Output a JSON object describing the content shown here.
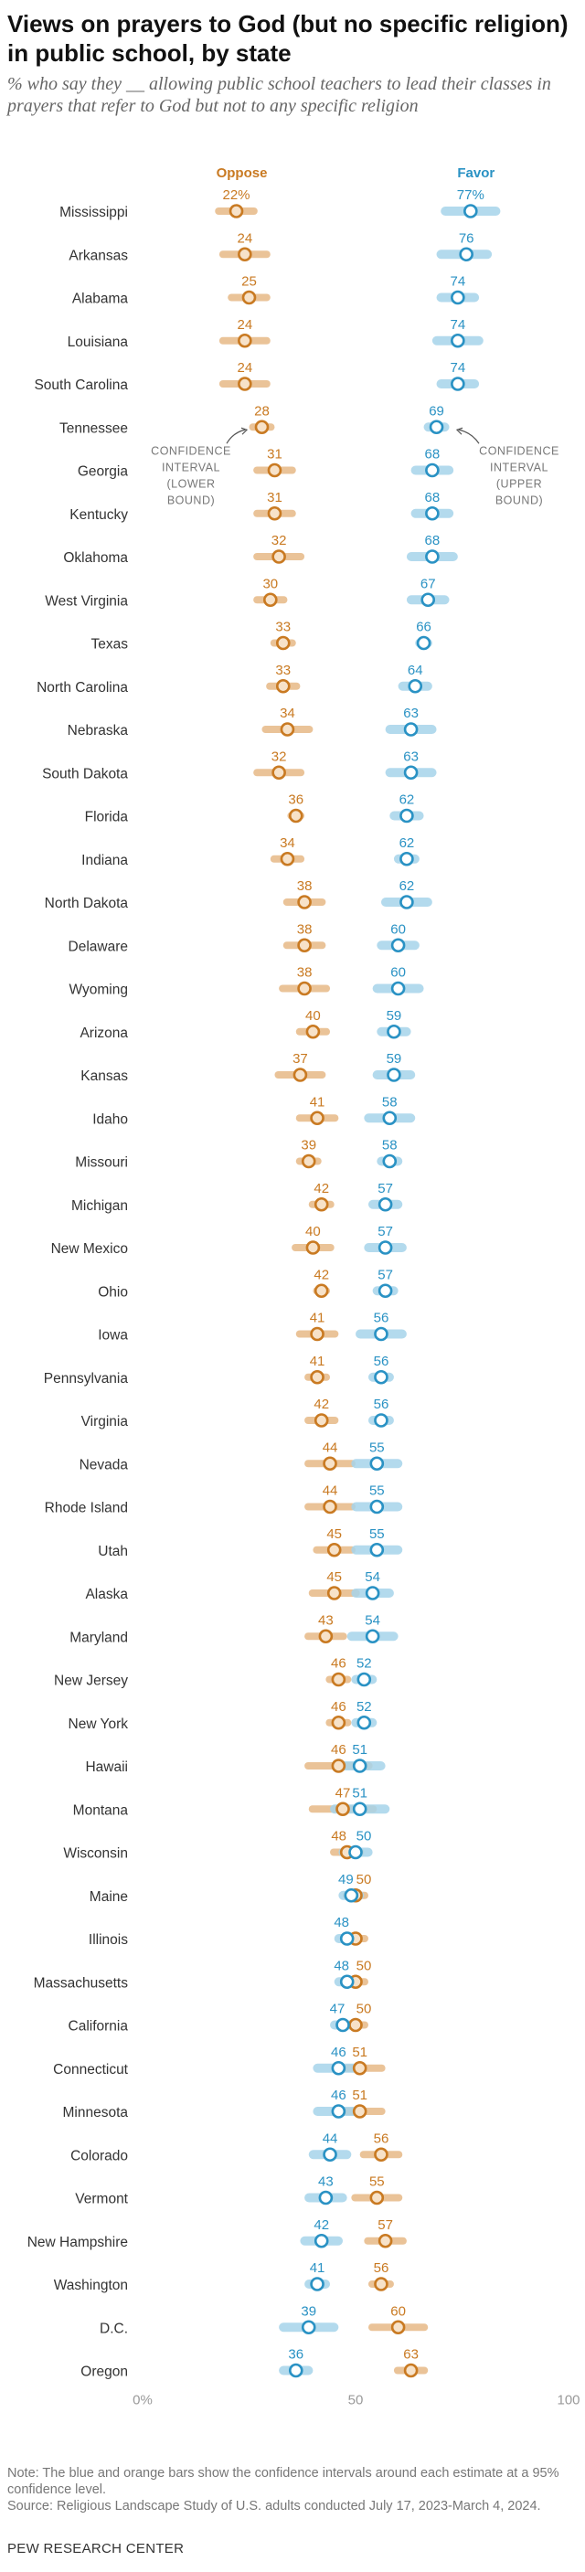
{
  "title": "Views on prayers to God (but no specific religion) in public school, by state",
  "subtitle": "% who say they __ allowing public school teachers to lead their classes in prayers that refer to God but not to any specific religion",
  "colors": {
    "oppose": "#c97a22",
    "oppose_bar": "#e6b886",
    "favor": "#2a92c4",
    "favor_bar": "#a6d3ea",
    "overlap": "#a9a392",
    "axis_text": "#9a9a9a",
    "label_text": "#333333"
  },
  "annotations": {
    "left": [
      "CONFIDENCE",
      "INTERVAL",
      "(LOWER",
      "BOUND)"
    ],
    "right": [
      "CONFIDENCE",
      "INTERVAL",
      "(UPPER",
      "BOUND)"
    ]
  },
  "chart_data": {
    "type": "dot-plot",
    "xlim": [
      0,
      100
    ],
    "xticks": [
      "0%",
      "50",
      "100"
    ],
    "xtick_values": [
      0,
      50,
      100
    ],
    "legend": [
      "Oppose",
      "Favor"
    ],
    "series": [
      {
        "name": "Oppose",
        "values": [
          22,
          24,
          25,
          24,
          24,
          28,
          31,
          31,
          32,
          30,
          33,
          33,
          34,
          32,
          36,
          34,
          38,
          38,
          38,
          40,
          37,
          41,
          39,
          42,
          40,
          42,
          41,
          41,
          42,
          44,
          44,
          45,
          45,
          43,
          46,
          46,
          46,
          47,
          48,
          50,
          50,
          50,
          50,
          51,
          51,
          56,
          55,
          57,
          56,
          60,
          63
        ],
        "labels": [
          "22%",
          "24",
          "25",
          "24",
          "24",
          "28",
          "31",
          "31",
          "32",
          "30",
          "33",
          "33",
          "34",
          "32",
          "36",
          "34",
          "38",
          "38",
          "38",
          "40",
          "37",
          "41",
          "39",
          "42",
          "40",
          "42",
          "41",
          "41",
          "42",
          "44",
          "44",
          "45",
          "45",
          "43",
          "46",
          "46",
          "46",
          "47",
          "48",
          "50",
          "",
          "50",
          "50",
          "51",
          "51",
          "56",
          "55",
          "57",
          "56",
          "60",
          "63"
        ],
        "ci_low": [
          17,
          18,
          20,
          18,
          18,
          25,
          26,
          26,
          26,
          26,
          30,
          29,
          28,
          26,
          34,
          30,
          33,
          33,
          32,
          36,
          31,
          36,
          36,
          39,
          35,
          40,
          36,
          38,
          38,
          38,
          38,
          40,
          39,
          38,
          43,
          43,
          38,
          39,
          44,
          47,
          47,
          47,
          47,
          45,
          45,
          51,
          49,
          52,
          53,
          53,
          59
        ],
        "ci_high": [
          27,
          30,
          30,
          30,
          30,
          31,
          36,
          36,
          38,
          34,
          36,
          37,
          40,
          38,
          38,
          38,
          43,
          43,
          44,
          44,
          43,
          46,
          42,
          45,
          45,
          44,
          46,
          44,
          46,
          50,
          50,
          50,
          51,
          48,
          49,
          49,
          54,
          55,
          52,
          53,
          53,
          53,
          53,
          57,
          57,
          61,
          61,
          62,
          59,
          67,
          67
        ]
      },
      {
        "name": "Favor",
        "values": [
          77,
          76,
          74,
          74,
          74,
          69,
          68,
          68,
          68,
          67,
          66,
          64,
          63,
          63,
          62,
          62,
          62,
          60,
          60,
          59,
          59,
          58,
          58,
          57,
          57,
          57,
          56,
          56,
          56,
          55,
          55,
          55,
          54,
          54,
          52,
          52,
          51,
          51,
          50,
          49,
          48,
          48,
          47,
          46,
          46,
          44,
          43,
          42,
          41,
          39,
          36
        ],
        "labels": [
          "77%",
          "76",
          "74",
          "74",
          "74",
          "69",
          "68",
          "68",
          "68",
          "67",
          "66",
          "64",
          "63",
          "63",
          "62",
          "62",
          "62",
          "60",
          "60",
          "59",
          "59",
          "58",
          "58",
          "57",
          "57",
          "57",
          "56",
          "56",
          "56",
          "55",
          "55",
          "55",
          "54",
          "54",
          "52",
          "52",
          "51",
          "51",
          "50",
          "49",
          "48",
          "48",
          "47",
          "46",
          "46",
          "44",
          "43",
          "42",
          "41",
          "39",
          "36"
        ],
        "ci_low": [
          70,
          69,
          69,
          68,
          69,
          66,
          63,
          63,
          62,
          62,
          64,
          60,
          57,
          57,
          58,
          59,
          56,
          55,
          54,
          55,
          54,
          52,
          55,
          53,
          52,
          54,
          50,
          53,
          53,
          49,
          49,
          49,
          49,
          48,
          49,
          49,
          45,
          44,
          46,
          46,
          45,
          45,
          44,
          40,
          40,
          39,
          38,
          37,
          38,
          32,
          32
        ],
        "ci_high": [
          84,
          82,
          79,
          80,
          79,
          72,
          73,
          73,
          74,
          72,
          68,
          68,
          69,
          69,
          66,
          65,
          68,
          65,
          66,
          63,
          64,
          64,
          61,
          61,
          62,
          60,
          62,
          59,
          59,
          61,
          61,
          61,
          59,
          60,
          55,
          55,
          57,
          58,
          54,
          52,
          51,
          51,
          50,
          52,
          52,
          49,
          48,
          47,
          44,
          46,
          40
        ]
      }
    ],
    "categories": [
      "Mississippi",
      "Arkansas",
      "Alabama",
      "Louisiana",
      "South Carolina",
      "Tennessee",
      "Georgia",
      "Kentucky",
      "Oklahoma",
      "West Virginia",
      "Texas",
      "North Carolina",
      "Nebraska",
      "South Dakota",
      "Florida",
      "Indiana",
      "North Dakota",
      "Delaware",
      "Wyoming",
      "Arizona",
      "Kansas",
      "Idaho",
      "Missouri",
      "Michigan",
      "New Mexico",
      "Ohio",
      "Iowa",
      "Pennsylvania",
      "Virginia",
      "Nevada",
      "Rhode Island",
      "Utah",
      "Alaska",
      "Maryland",
      "New Jersey",
      "New York",
      "Hawaii",
      "Montana",
      "Wisconsin",
      "Maine",
      "Illinois",
      "Massachusetts",
      "California",
      "Connecticut",
      "Minnesota",
      "Colorado",
      "Vermont",
      "New Hampshire",
      "Washington",
      "D.C.",
      "Oregon"
    ]
  },
  "notes": [
    "Note: The blue and orange bars show the confidence intervals around each estimate at a 95% confidence level.",
    "Source: Religious Landscape Study of U.S. adults conducted July 17, 2023-March 4, 2024."
  ],
  "source_label": "PEW RESEARCH CENTER"
}
